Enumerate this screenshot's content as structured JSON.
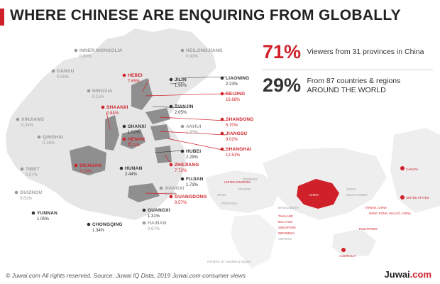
{
  "title": "WHERE CHINESE ARE ENQUIRING FROM GLOBALLY",
  "stats": [
    {
      "value": "71%",
      "text": "Viewers from 31 provinces in China"
    },
    {
      "value": "29%",
      "text_line1": "From 87 countries & regions",
      "text_line2": "AROUND THE WORLD"
    }
  ],
  "colors": {
    "accent": "#d0202a",
    "highlight_province": "#8f8f8f",
    "land": "#e6e6e6",
    "grey_label": "#9a9a9a",
    "dark_label": "#333333"
  },
  "provinces": [
    {
      "name": "INNER MONGOLIA",
      "value": "0.60%",
      "style": "grey"
    },
    {
      "name": "HEILONGJIANG",
      "value": "0.90%",
      "style": "grey"
    },
    {
      "name": "GANSU",
      "value": "0.55%",
      "style": "grey"
    },
    {
      "name": "NINGXIA",
      "value": "0.15%",
      "style": "grey"
    },
    {
      "name": "HEBEI",
      "value": "7.65%",
      "style": "red"
    },
    {
      "name": "JILIN",
      "value": "1.96%",
      "style": "dark"
    },
    {
      "name": "LIAONING",
      "value": "2.23%",
      "style": "dark"
    },
    {
      "name": "BEIJING",
      "value": "16.68%",
      "style": "red"
    },
    {
      "name": "TIANJIN",
      "value": "2.05%",
      "style": "dark"
    },
    {
      "name": "XINJIANG",
      "value": "0.34%",
      "style": "grey"
    },
    {
      "name": "SHAANXI",
      "value": "2.84%",
      "style": "red"
    },
    {
      "name": "SHANXI",
      "value": "1.02%",
      "style": "dark"
    },
    {
      "name": "ANHUI",
      "value": "1.95%",
      "style": "grey"
    },
    {
      "name": "SHANDONG",
      "value": "5.70%",
      "style": "red"
    },
    {
      "name": "QINGHAI",
      "value": "0.16%",
      "style": "grey"
    },
    {
      "name": "HENAN",
      "value": "3.21%",
      "style": "red"
    },
    {
      "name": "JIANGSU",
      "value": "9.02%",
      "style": "red"
    },
    {
      "name": "SHANGHAI",
      "value": "12.51%",
      "style": "red"
    },
    {
      "name": "HUBEI",
      "value": "2.29%",
      "style": "dark"
    },
    {
      "name": "TIBET",
      "value": "0.07%",
      "style": "grey"
    },
    {
      "name": "SICHUAN",
      "value": "3.10%",
      "style": "red"
    },
    {
      "name": "HUNAN",
      "value": "2.44%",
      "style": "dark"
    },
    {
      "name": "ZHEJIANG",
      "value": "7.72%",
      "style": "red"
    },
    {
      "name": "FUJIAN",
      "value": "1.73%",
      "style": "dark"
    },
    {
      "name": "GUIZHOU",
      "value": "0.81%",
      "style": "grey"
    },
    {
      "name": "JIANGXI",
      "value": "0.72%",
      "style": "grey"
    },
    {
      "name": "YUNNAN",
      "value": "1.05%",
      "style": "dark"
    },
    {
      "name": "GUANGDONG",
      "value": "9.57%",
      "style": "red"
    },
    {
      "name": "GUANGXI",
      "value": "1.31%",
      "style": "dark"
    },
    {
      "name": "CHONGQING",
      "value": "1.34%",
      "style": "dark"
    },
    {
      "name": "HAINAN",
      "value": "0.67%",
      "style": "grey"
    }
  ],
  "world_labels": [
    {
      "name": "UNITED KINGDOM",
      "style": "red"
    },
    {
      "name": "GERMANY",
      "style": "grey"
    },
    {
      "name": "FRANCE",
      "style": "grey"
    },
    {
      "name": "SPAIN",
      "style": "grey"
    },
    {
      "name": "PORTUGAL",
      "style": "grey"
    },
    {
      "name": "JAPAN",
      "style": "grey"
    },
    {
      "name": "SOUTH KOREA",
      "style": "grey"
    },
    {
      "name": "TAIWAN, CHINA",
      "style": "red"
    },
    {
      "name": "HONG KONG, MACAO, CHINA",
      "style": "red"
    },
    {
      "name": "BANGLADESH",
      "style": "grey"
    },
    {
      "name": "THAILAND",
      "style": "red"
    },
    {
      "name": "MALAYSIA",
      "style": "red"
    },
    {
      "name": "SINGAPORE",
      "style": "red"
    },
    {
      "name": "INDONESIA",
      "style": "red"
    },
    {
      "name": "PHILIPPINES",
      "style": "red"
    },
    {
      "name": "VIETNAM",
      "style": "grey"
    },
    {
      "name": "AUSTRALIA",
      "style": "red"
    },
    {
      "name": "CANADA",
      "style": "red"
    },
    {
      "name": "UNITED STATES",
      "style": "red"
    },
    {
      "name": "CHINA",
      "style": "red"
    },
    {
      "name": "OTHERS: 67 countries & regions",
      "style": "grey"
    }
  ],
  "footer": "© Juwai.com All rights reserved. Source: Juwai IQ Data, 2019 Juwai.com consumer views",
  "logo": {
    "main": "Juwai",
    "suffix": ".com"
  }
}
